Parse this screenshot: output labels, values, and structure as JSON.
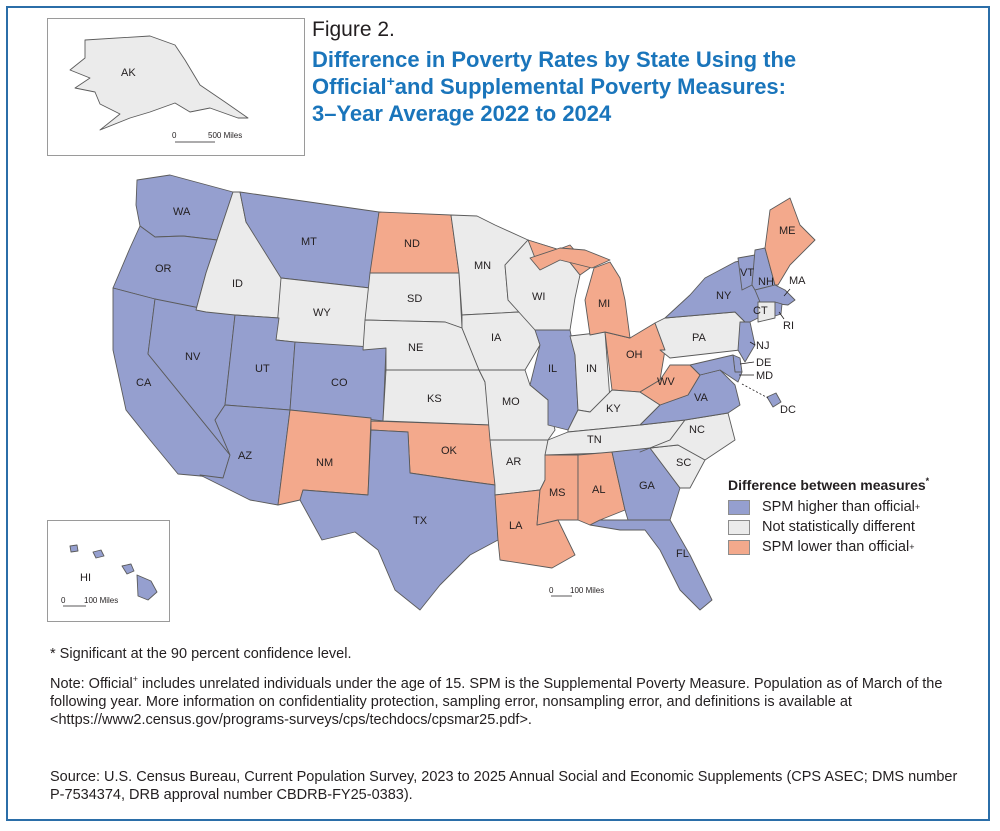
{
  "figure_label": "Figure 2.",
  "title": {
    "line1": "Difference in Poverty Rates by State Using the",
    "line2_a": "Official",
    "line2_mark": "+",
    "line2_b": "and Supplemental Poverty Measures:",
    "line3": "3–Year Average 2022 to 2024"
  },
  "colors": {
    "higher": "#959fcf",
    "not_different": "#ebebeb",
    "lower": "#f3a98c",
    "border": "#5b5b5b",
    "title_blue": "#1a75bb"
  },
  "map": {
    "state_values": {
      "WA": "higher",
      "OR": "higher",
      "CA": "higher",
      "NV": "higher",
      "ID": "not_different",
      "MT": "higher",
      "WY": "not_different",
      "UT": "higher",
      "AZ": "higher",
      "CO": "higher",
      "NM": "lower",
      "ND": "lower",
      "SD": "not_different",
      "NE": "not_different",
      "KS": "not_different",
      "OK": "lower",
      "TX": "higher",
      "MN": "not_different",
      "IA": "not_different",
      "MO": "not_different",
      "AR": "not_different",
      "LA": "lower",
      "WI": "not_different",
      "IL": "higher",
      "MI": "lower",
      "IN": "not_different",
      "OH": "lower",
      "KY": "not_different",
      "TN": "not_different",
      "MS": "lower",
      "AL": "lower",
      "GA": "higher",
      "FL": "higher",
      "SC": "not_different",
      "NC": "not_different",
      "VA": "higher",
      "WV": "lower",
      "PA": "not_different",
      "NY": "higher",
      "VT": "higher",
      "NH": "higher",
      "ME": "lower",
      "MA": "higher",
      "RI": "higher",
      "CT": "not_different",
      "NJ": "higher",
      "DE": "higher",
      "MD": "higher",
      "DC": "higher",
      "AK": "not_different",
      "HI": "higher"
    },
    "state_labels": {
      "WA": "WA",
      "OR": "OR",
      "CA": "CA",
      "NV": "NV",
      "ID": "ID",
      "MT": "MT",
      "WY": "WY",
      "UT": "UT",
      "AZ": "AZ",
      "CO": "CO",
      "NM": "NM",
      "ND": "ND",
      "SD": "SD",
      "NE": "NE",
      "KS": "KS",
      "OK": "OK",
      "TX": "TX",
      "MN": "MN",
      "IA": "IA",
      "MO": "MO",
      "AR": "AR",
      "LA": "LA",
      "WI": "WI",
      "IL": "IL",
      "MI": "MI",
      "IN": "IN",
      "OH": "OH",
      "KY": "KY",
      "TN": "TN",
      "MS": "MS",
      "AL": "AL",
      "GA": "GA",
      "FL": "FL",
      "SC": "SC",
      "NC": "NC",
      "VA": "VA",
      "WV": "WV",
      "PA": "PA",
      "NY": "NY",
      "VT": "VT",
      "NH": "NH",
      "ME": "ME",
      "MA": "MA",
      "RI": "RI",
      "CT": "CT",
      "NJ": "NJ",
      "DE": "DE",
      "MD": "MD",
      "DC": "DC",
      "AK": "AK",
      "HI": "HI"
    },
    "scale_zero": "0",
    "alaska_scale": "500 Miles",
    "hawaii_scale": "100 Miles",
    "conus_scale": "100 Miles"
  },
  "legend": {
    "title": "Difference between measures",
    "title_mark": "*",
    "items": [
      {
        "label": "SPM higher than official",
        "mark": "+"
      },
      {
        "label": "Not statistically different",
        "mark": ""
      },
      {
        "label": "SPM lower than official",
        "mark": "+"
      }
    ]
  },
  "footnote": "* Significant at the 90 percent confidence level.",
  "note": {
    "lead": "Note: Official",
    "mark": "+",
    "text": " includes unrelated individuals under the age of 15. SPM is the Supplemental Poverty Measure. Population as of March of the following year. More information on confidentiality protection, sampling error, nonsampling error, and definitions is available at <https://www2.census.gov/programs-surveys/cps/techdocs/cpsmar25.pdf>."
  },
  "source": "Source: U.S. Census Bureau, Current Population Survey, 2023 to 2025 Annual Social and Economic Supplements (CPS ASEC; DMS number P-7534374, DRB approval number CBDRB-FY25-0383)."
}
